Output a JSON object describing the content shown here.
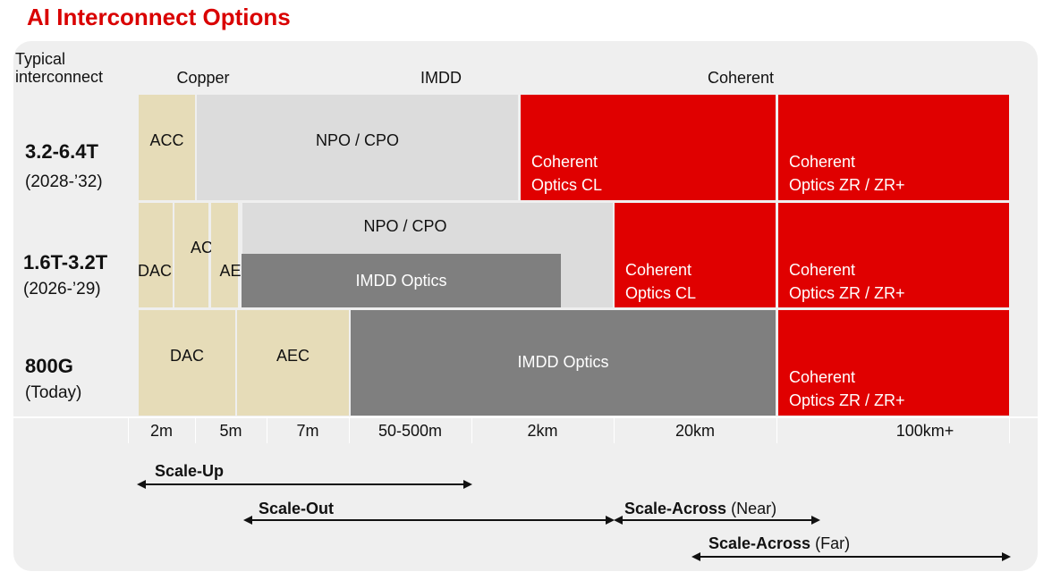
{
  "title": "AI Interconnect Options",
  "row_header": "Typical\ninterconnect",
  "columns": {
    "copper": "Copper",
    "imdd": "IMDD",
    "coherent": "Coherent"
  },
  "rows": [
    {
      "rate": "3.2-6.4T",
      "years": "(2028-’32)"
    },
    {
      "rate": "1.6T-3.2T",
      "years": "(2026-’29)"
    },
    {
      "rate": "800G",
      "years": "(Today)"
    }
  ],
  "cells": {
    "r1_acc": "ACC",
    "r1_npo": "NPO / CPO",
    "r1_coh_cl_1": "Coherent",
    "r1_coh_cl_2": "Optics CL",
    "r1_coh_zr_1": "Coherent",
    "r1_coh_zr_2": "Optics ZR / ZR+",
    "r2_dac": "DAC",
    "r2_acc": "ACC",
    "r2_aec": "AEC",
    "r2_npo": "NPO / CPO",
    "r2_imdd": "IMDD Optics",
    "r2_coh_cl_1": "Coherent",
    "r2_coh_cl_2": "Optics CL",
    "r2_coh_zr_1": "Coherent",
    "r2_coh_zr_2": "Optics ZR / ZR+",
    "r3_dac": "DAC",
    "r3_aec": "AEC",
    "r3_imdd": "IMDD Optics",
    "r3_coh_zr_1": "Coherent",
    "r3_coh_zr_2": "Optics ZR / ZR+"
  },
  "distances": [
    "2m",
    "5m",
    "7m",
    "50-500m",
    "2km",
    "20km",
    "100km+"
  ],
  "scales": [
    {
      "name": "Scale-Up",
      "qualifier": ""
    },
    {
      "name": "Scale-Out",
      "qualifier": ""
    },
    {
      "name": "Scale-Across",
      "qualifier": " (Near)"
    },
    {
      "name": "Scale-Across",
      "qualifier": " (Far)"
    }
  ],
  "colors": {
    "title": "#d90000",
    "copper": "#e6dcb8",
    "npo": "#dcdcdc",
    "imdd": "#7f7f7f",
    "coherent": "#e00000"
  }
}
